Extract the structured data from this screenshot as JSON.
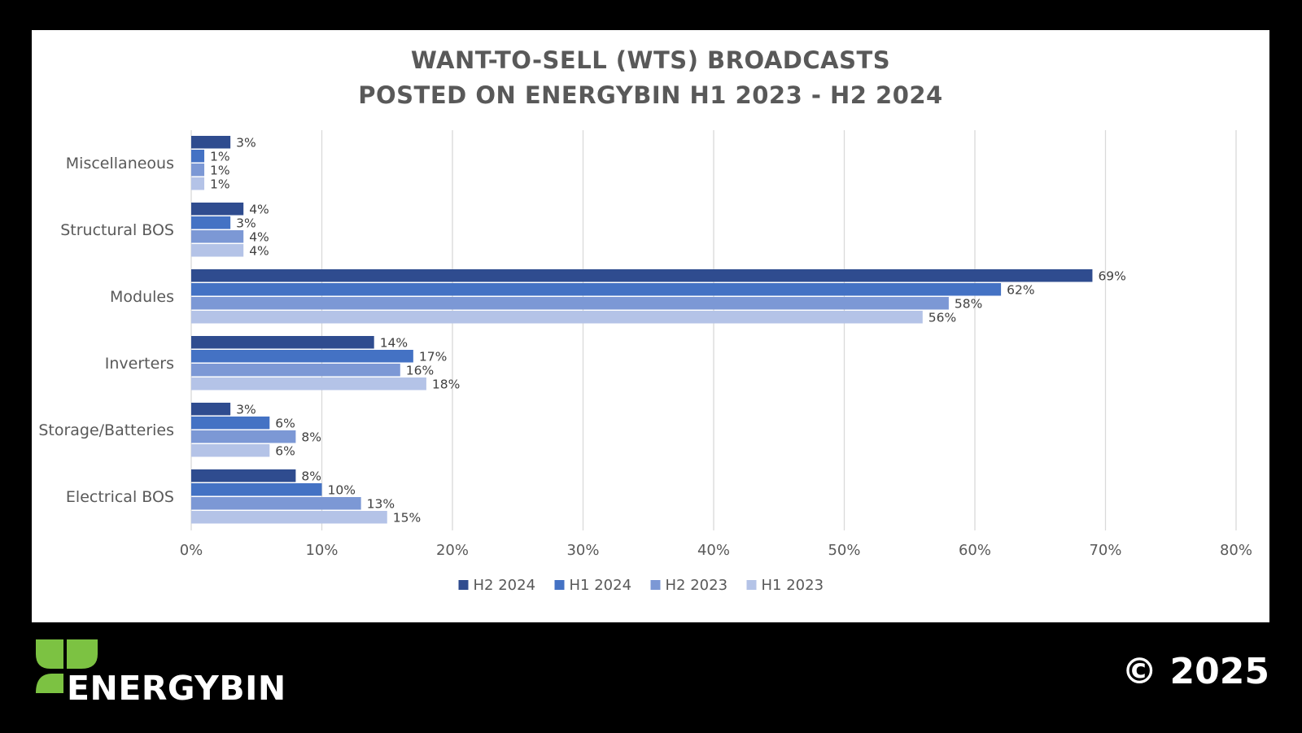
{
  "chart_data": {
    "type": "bar",
    "orientation": "horizontal",
    "title_line1": "WANT-TO-SELL (WTS) BROADCASTS",
    "title_line2": "POSTED ON ENERGYBIN H1 2023 - H2 2024",
    "categories": [
      "Miscellaneous",
      "Structural BOS",
      "Modules",
      "Inverters",
      "Storage/Batteries",
      "Electrical BOS"
    ],
    "series": [
      {
        "name": "H2 2024",
        "color": "#2F4C8F",
        "values": [
          3,
          4,
          69,
          14,
          3,
          8
        ],
        "labels": [
          "3%",
          "4%",
          "69%",
          "14%",
          "3%",
          "8%"
        ]
      },
      {
        "name": "H1 2024",
        "color": "#4472C4",
        "values": [
          1,
          3,
          62,
          17,
          6,
          10
        ],
        "labels": [
          "1%",
          "3%",
          "62%",
          "17%",
          "6%",
          "10%"
        ]
      },
      {
        "name": "H2 2023",
        "color": "#7C98D5",
        "values": [
          1,
          4,
          58,
          16,
          8,
          13
        ],
        "labels": [
          "1%",
          "4%",
          "58%",
          "16%",
          "8%",
          "13%"
        ]
      },
      {
        "name": "H1 2023",
        "color": "#B4C3E7",
        "values": [
          1,
          4,
          56,
          18,
          6,
          15
        ],
        "labels": [
          "1%",
          "4%",
          "56%",
          "18%",
          "6%",
          "15%"
        ]
      }
    ],
    "xlim": [
      0,
      80
    ],
    "xticks": [
      "0%",
      "10%",
      "20%",
      "30%",
      "40%",
      "50%",
      "60%",
      "70%",
      "80%"
    ],
    "grid": true,
    "legend_position": "bottom"
  },
  "branding": {
    "logo_text": "ENERGYBIN",
    "copyright": "© 2025",
    "leaf_color": "#7CC242"
  }
}
